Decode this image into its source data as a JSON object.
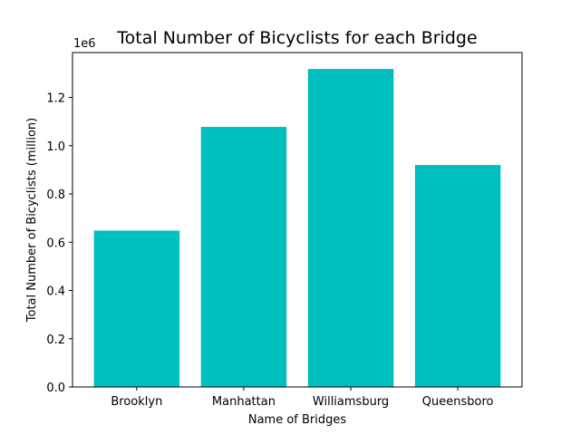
{
  "chart_data": {
    "type": "bar",
    "title": "Total Number of Bicyclists for each Bridge",
    "xlabel": "Name of Bridges",
    "ylabel": "Total Number of Bicyclists (million)",
    "y_offset_label": "1e6",
    "categories": [
      "Brooklyn",
      "Manhattan",
      "Williamsburg",
      "Queensboro"
    ],
    "values": [
      648000,
      1078000,
      1318000,
      920000
    ],
    "ylim": [
      0,
      1386000
    ],
    "yticks": [
      0,
      200000,
      400000,
      600000,
      800000,
      1000000,
      1200000
    ],
    "ytick_labels": [
      "0.0",
      "0.2",
      "0.4",
      "0.6",
      "0.8",
      "1.0",
      "1.2"
    ],
    "bar_color": "#00bfbf",
    "grid": false,
    "legend": "none"
  }
}
